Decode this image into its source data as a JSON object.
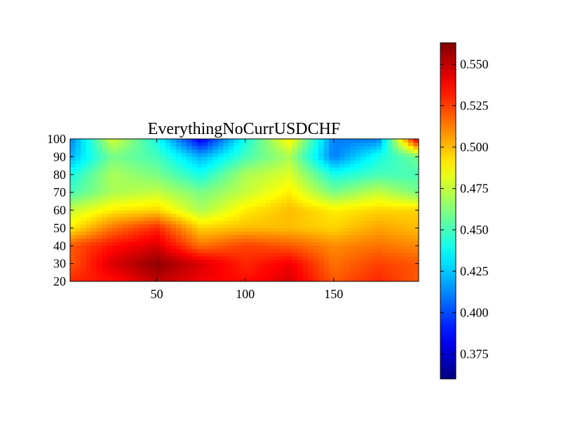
{
  "chart_data": {
    "type": "heatmap",
    "title": "EverythingNoCurrUSDCHF",
    "xlabel": "",
    "ylabel": "",
    "xlim": [
      1,
      198
    ],
    "ylim": [
      20,
      100
    ],
    "x_ticks": [
      50,
      100,
      150
    ],
    "y_ticks": [
      20,
      30,
      40,
      50,
      60,
      70,
      80,
      90,
      100
    ],
    "colormap": "jet",
    "colorbar": {
      "range": [
        0.36,
        0.563
      ],
      "ticks": [
        "0.375",
        "0.400",
        "0.425",
        "0.450",
        "0.475",
        "0.500",
        "0.525",
        "0.550"
      ],
      "tick_values": [
        0.375,
        0.4,
        0.425,
        0.45,
        0.475,
        0.5,
        0.525,
        0.55
      ]
    },
    "grid": false,
    "x_nodes": [
      1,
      25,
      50,
      75,
      100,
      125,
      150,
      175,
      198
    ],
    "y_nodes": [
      20,
      30,
      40,
      50,
      60,
      70,
      80,
      90,
      100
    ],
    "values": [
      [
        0.53,
        0.535,
        0.55,
        0.54,
        0.535,
        0.545,
        0.52,
        0.53,
        0.52
      ],
      [
        0.52,
        0.545,
        0.56,
        0.545,
        0.53,
        0.54,
        0.515,
        0.525,
        0.52
      ],
      [
        0.52,
        0.535,
        0.545,
        0.515,
        0.525,
        0.52,
        0.51,
        0.515,
        0.51
      ],
      [
        0.49,
        0.515,
        0.53,
        0.495,
        0.5,
        0.5,
        0.495,
        0.505,
        0.5
      ],
      [
        0.475,
        0.49,
        0.495,
        0.47,
        0.49,
        0.5,
        0.49,
        0.495,
        0.495
      ],
      [
        0.45,
        0.47,
        0.475,
        0.46,
        0.475,
        0.49,
        0.46,
        0.475,
        0.46
      ],
      [
        0.44,
        0.47,
        0.46,
        0.44,
        0.47,
        0.48,
        0.44,
        0.45,
        0.45
      ],
      [
        0.42,
        0.46,
        0.45,
        0.42,
        0.45,
        0.47,
        0.41,
        0.44,
        0.46
      ],
      [
        0.41,
        0.48,
        0.44,
        0.38,
        0.44,
        0.49,
        0.41,
        0.41,
        0.55
      ]
    ],
    "note": ""
  }
}
